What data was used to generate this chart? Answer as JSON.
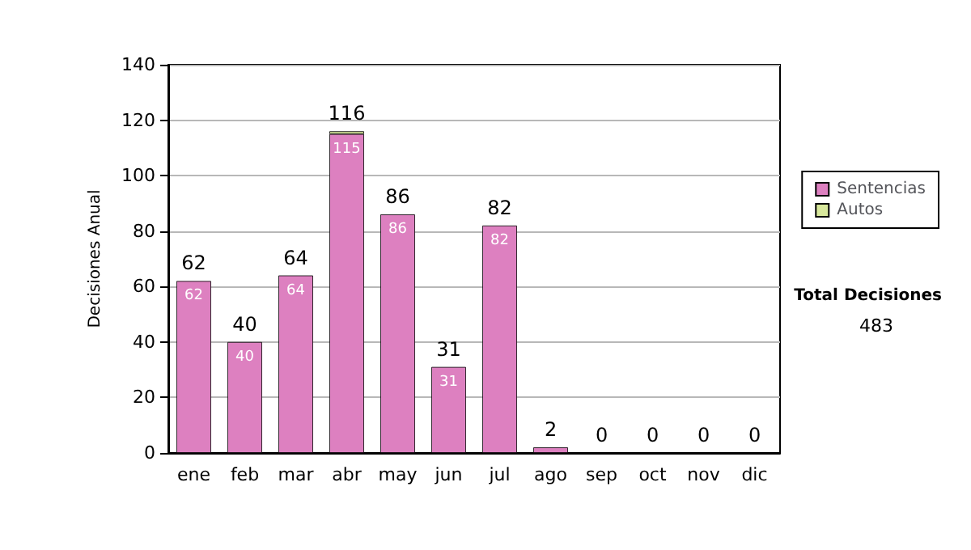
{
  "chart_data": {
    "type": "bar",
    "stacked": true,
    "ylabel": "Decisiones Anual",
    "categories": [
      "ene",
      "feb",
      "mar",
      "abr",
      "may",
      "jun",
      "jul",
      "ago",
      "sep",
      "oct",
      "nov",
      "dic"
    ],
    "series": [
      {
        "name": "Sentencias",
        "color": "#dd80c0",
        "values": [
          62,
          40,
          64,
          115,
          86,
          31,
          82,
          2,
          0,
          0,
          0,
          0
        ],
        "value_labels": [
          "62",
          "40",
          "64",
          "115",
          "86",
          "31",
          "82",
          null,
          null,
          null,
          null,
          null
        ]
      },
      {
        "name": "Autos",
        "color": "#d8e89c",
        "values": [
          0,
          0,
          0,
          1,
          0,
          0,
          0,
          0,
          0,
          0,
          0,
          0
        ]
      }
    ],
    "totals": [
      "62",
      "40",
      "64",
      "116",
      "86",
      "31",
      "82",
      "2",
      "0",
      "0",
      "0",
      "0"
    ],
    "ylim": [
      0,
      140
    ],
    "yticks": [
      0,
      20,
      40,
      60,
      80,
      100,
      120,
      140
    ],
    "grid": "y",
    "legend": "right",
    "annotations": [
      "Total Decisiones",
      "483"
    ]
  }
}
